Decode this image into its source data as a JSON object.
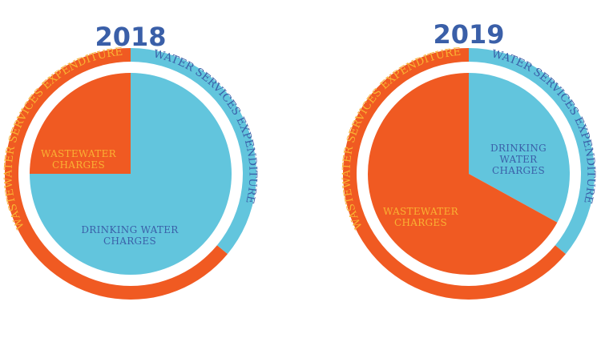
{
  "colors": {
    "orange": "#f05a22",
    "blue": "#62c5dd",
    "title": "#3a5fa8",
    "orange_text": "#f9b233",
    "blue_text": "#3a5fa8"
  },
  "chart_data": [
    {
      "type": "pie",
      "title": "2018",
      "outer": {
        "slices": [
          {
            "label": "WATER SERVICES EXPENDITURE",
            "value": 0.36,
            "color_key": "blue"
          },
          {
            "label": "WASTEWATER SERVICES EXPENDITURE",
            "value": 0.64,
            "color_key": "orange"
          }
        ]
      },
      "inner": {
        "slices": [
          {
            "label": [
              "DRINKING WATER",
              "CHARGES"
            ],
            "value": 0.75,
            "color_key": "blue"
          },
          {
            "label": [
              "WASTEWATER",
              "CHARGES"
            ],
            "value": 0.25,
            "color_key": "orange"
          }
        ]
      }
    },
    {
      "type": "pie",
      "title": "2019",
      "outer": {
        "slices": [
          {
            "label": "WATER SERVICES EXPENDITURE",
            "value": 0.36,
            "color_key": "blue"
          },
          {
            "label": "WASTEWATER SERVICES EXPENDITURE",
            "value": 0.64,
            "color_key": "orange"
          }
        ]
      },
      "inner": {
        "slices": [
          {
            "label": [
              "DRINKING",
              "WATER",
              "CHARGES"
            ],
            "value": 0.33,
            "color_key": "blue"
          },
          {
            "label": [
              "WASTEWATER",
              "CHARGES"
            ],
            "value": 0.67,
            "color_key": "orange"
          }
        ]
      }
    }
  ]
}
